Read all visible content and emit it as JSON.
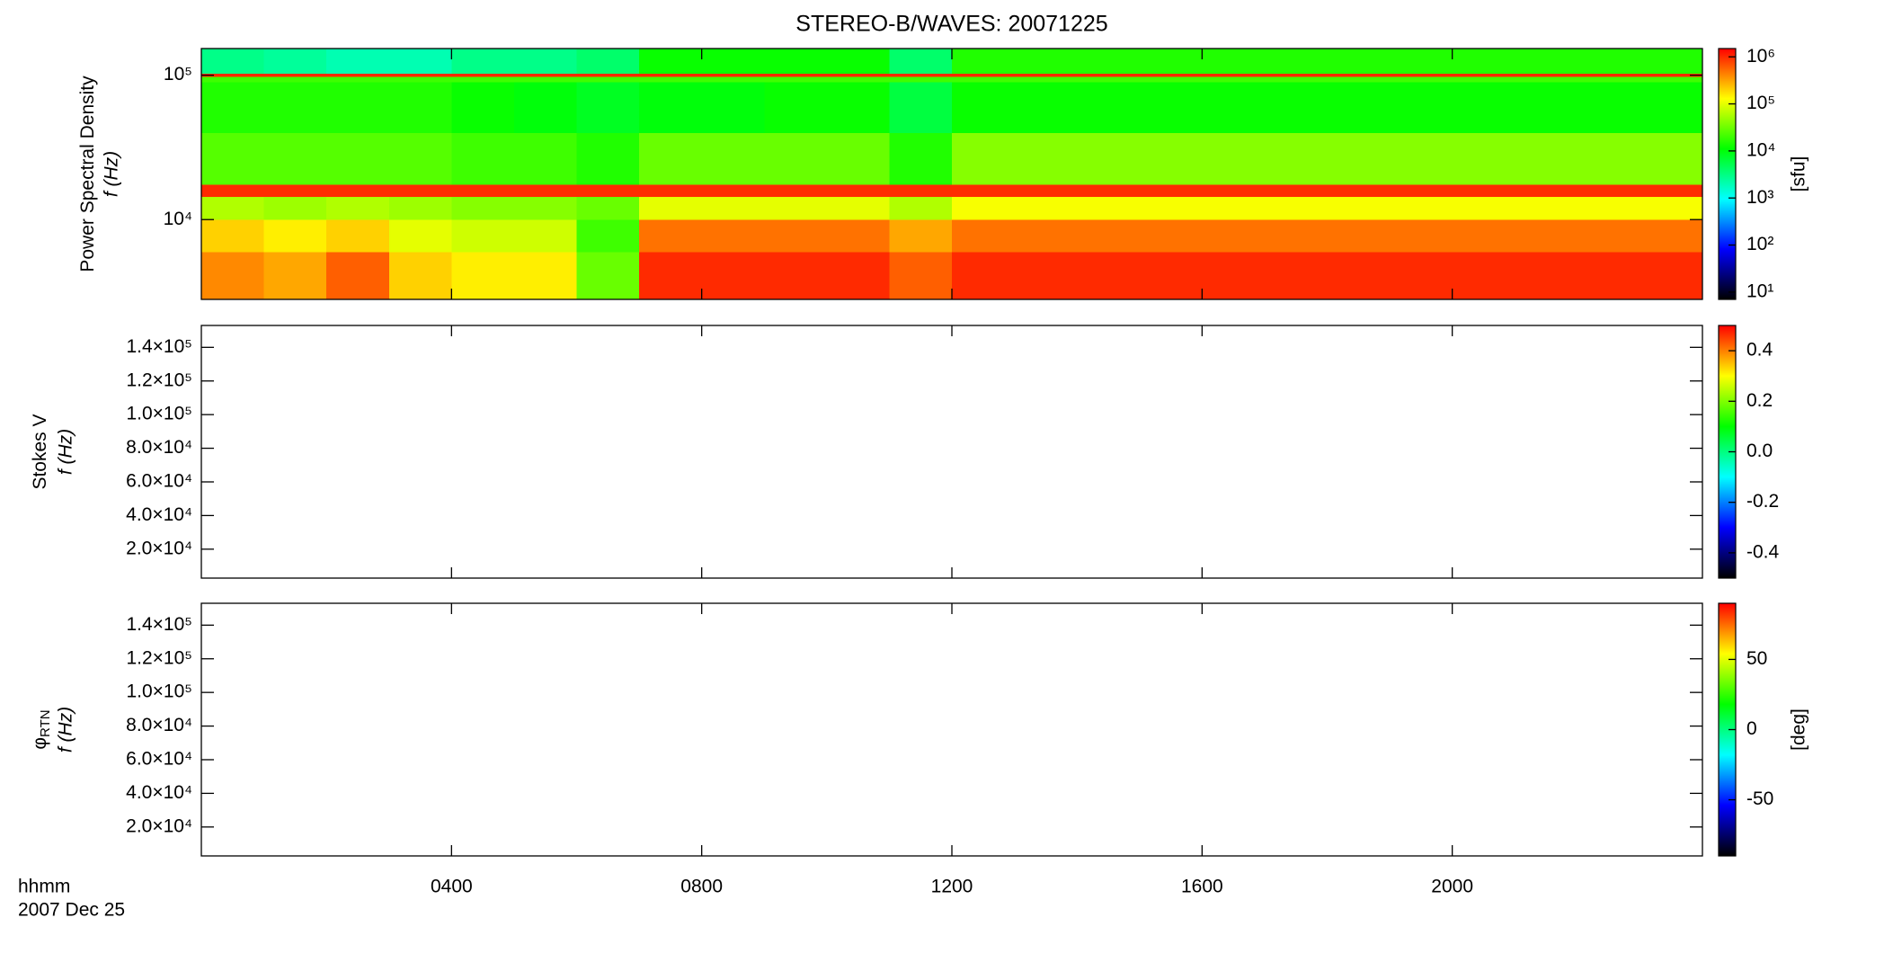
{
  "title": "STEREO-B/WAVES: 20071225",
  "x_label": "hhmm",
  "date_label": "2007 Dec 25",
  "chart_data": [
    {
      "type": "heatmap",
      "y_label": "Power Spectral Density",
      "y_label2": "f (Hz)",
      "ylog": true,
      "ylim": [
        2800,
        153000
      ],
      "yticks": [
        {
          "value": 10000,
          "label": "10⁴"
        },
        {
          "value": 100000,
          "label": "10⁵"
        }
      ],
      "xlim": [
        0,
        24
      ],
      "time_bins": [
        0,
        1,
        2,
        3,
        4,
        5,
        6,
        7,
        8,
        9,
        10,
        11,
        12,
        13,
        14,
        15,
        16,
        17,
        18,
        19,
        20,
        21,
        22,
        23,
        24
      ],
      "freq_bins": [
        2800,
        6000,
        10000,
        14500,
        17500,
        40000,
        90000,
        98000,
        103000,
        153000
      ],
      "values": [
        [
          400000,
          300000,
          600000,
          200000,
          150000,
          150000,
          30000,
          1000000,
          1000000,
          1000000,
          1000000,
          600000,
          1000000,
          1000000,
          1000000,
          1000000,
          1000000,
          1000000,
          1000000,
          1000000,
          1000000,
          1000000,
          1000000,
          1000000
        ],
        [
          200000,
          150000,
          200000,
          100000,
          80000,
          80000,
          20000,
          500000,
          500000,
          500000,
          500000,
          300000,
          500000,
          500000,
          500000,
          500000,
          500000,
          500000,
          500000,
          500000,
          500000,
          500000,
          500000,
          500000
        ],
        [
          60000,
          50000,
          60000,
          50000,
          40000,
          40000,
          30000,
          100000,
          100000,
          100000,
          100000,
          60000,
          120000,
          120000,
          120000,
          120000,
          120000,
          120000,
          120000,
          120000,
          120000,
          120000,
          120000,
          120000
        ],
        [
          1000000,
          1000000,
          1000000,
          1000000,
          1000000,
          1000000,
          1000000,
          1000000,
          1000000,
          1000000,
          1000000,
          1000000,
          1000000,
          1000000,
          1000000,
          1000000,
          1000000,
          1000000,
          1000000,
          1000000,
          1000000,
          1000000,
          1000000,
          1000000
        ],
        [
          25000,
          25000,
          25000,
          25000,
          20000,
          20000,
          15000,
          30000,
          30000,
          30000,
          30000,
          15000,
          40000,
          40000,
          40000,
          40000,
          40000,
          40000,
          40000,
          40000,
          40000,
          40000,
          40000,
          40000
        ],
        [
          15000,
          15000,
          15000,
          15000,
          12000,
          10000,
          8000,
          10000,
          10000,
          12000,
          12000,
          6000,
          12000,
          12000,
          12000,
          12000,
          12000,
          12000,
          12000,
          12000,
          12000,
          12000,
          12000,
          12000
        ],
        [
          20000,
          20000,
          20000,
          20000,
          20000,
          20000,
          20000,
          20000,
          20000,
          20000,
          20000,
          20000,
          20000,
          20000,
          20000,
          20000,
          20000,
          20000,
          20000,
          20000,
          20000,
          20000,
          20000,
          20000
        ],
        [
          1000000,
          1000000,
          1000000,
          1000000,
          1000000,
          1000000,
          1000000,
          1000000,
          1000000,
          1000000,
          1000000,
          1000000,
          1000000,
          1000000,
          1000000,
          1000000,
          1000000,
          1000000,
          1000000,
          1000000,
          1000000,
          1000000,
          1000000,
          1000000
        ],
        [
          3000,
          2500,
          2000,
          2000,
          3000,
          3000,
          4000,
          12000,
          12000,
          12000,
          12000,
          4000,
          15000,
          15000,
          15000,
          15000,
          15000,
          15000,
          15000,
          15000,
          15000,
          15000,
          15000,
          15000
        ]
      ],
      "colormap": [
        "#000000",
        "#0000ff",
        "#00ffff",
        "#00ff00",
        "#ffff00",
        "#ff0000"
      ],
      "colorbar": {
        "label": "[sfu]",
        "log": true,
        "lim": [
          7,
          1500000
        ],
        "ticks": [
          {
            "value": 10,
            "label": "10¹"
          },
          {
            "value": 100,
            "label": "10²"
          },
          {
            "value": 1000,
            "label": "10³"
          },
          {
            "value": 10000,
            "label": "10⁴"
          },
          {
            "value": 100000,
            "label": "10⁵"
          },
          {
            "value": 1000000,
            "label": "10⁶"
          }
        ]
      }
    },
    {
      "type": "heatmap",
      "y_label": "Stokes V",
      "y_label2": "f (Hz)",
      "ylim": [
        2800,
        153000
      ],
      "yticks": [
        {
          "value": 20000,
          "label": "2.0×10⁴"
        },
        {
          "value": 40000,
          "label": "4.0×10⁴"
        },
        {
          "value": 60000,
          "label": "6.0×10⁴"
        },
        {
          "value": 80000,
          "label": "8.0×10⁴"
        },
        {
          "value": 100000,
          "label": "1.0×10⁵"
        },
        {
          "value": 120000,
          "label": "1.2×10⁵"
        },
        {
          "value": 140000,
          "label": "1.4×10⁵"
        }
      ],
      "xlim": [
        0,
        24
      ],
      "colormap": [
        "#000000",
        "#0000ff",
        "#00ffff",
        "#00ff00",
        "#ffff00",
        "#ff0000"
      ],
      "colorbar": {
        "lim": [
          -0.5,
          0.5
        ],
        "ticks": [
          -0.4,
          -0.2,
          {
            "value": 0,
            "label": "0.0"
          },
          0.2,
          0.4
        ]
      }
    },
    {
      "type": "heatmap",
      "y_label": "φ",
      "y_label_sub": "RTN",
      "y_label2": "f (Hz)",
      "ylim": [
        2800,
        153000
      ],
      "yticks": [
        {
          "value": 20000,
          "label": "2.0×10⁴"
        },
        {
          "value": 40000,
          "label": "4.0×10⁴"
        },
        {
          "value": 60000,
          "label": "6.0×10⁴"
        },
        {
          "value": 80000,
          "label": "8.0×10⁴"
        },
        {
          "value": 100000,
          "label": "1.0×10⁵"
        },
        {
          "value": 120000,
          "label": "1.2×10⁵"
        },
        {
          "value": 140000,
          "label": "1.4×10⁵"
        }
      ],
      "xlim": [
        0,
        24
      ],
      "xticks": [
        {
          "value": 4,
          "label": "0400"
        },
        {
          "value": 8,
          "label": "0800"
        },
        {
          "value": 12,
          "label": "1200"
        },
        {
          "value": 16,
          "label": "1600"
        },
        {
          "value": 20,
          "label": "2000"
        }
      ],
      "colormap": [
        "#000000",
        "#0000ff",
        "#00ffff",
        "#00ff00",
        "#ffff00",
        "#ff0000"
      ],
      "colorbar": {
        "label": "[deg]",
        "lim": [
          -90,
          90
        ],
        "ticks": [
          -50,
          0,
          50
        ]
      }
    }
  ]
}
